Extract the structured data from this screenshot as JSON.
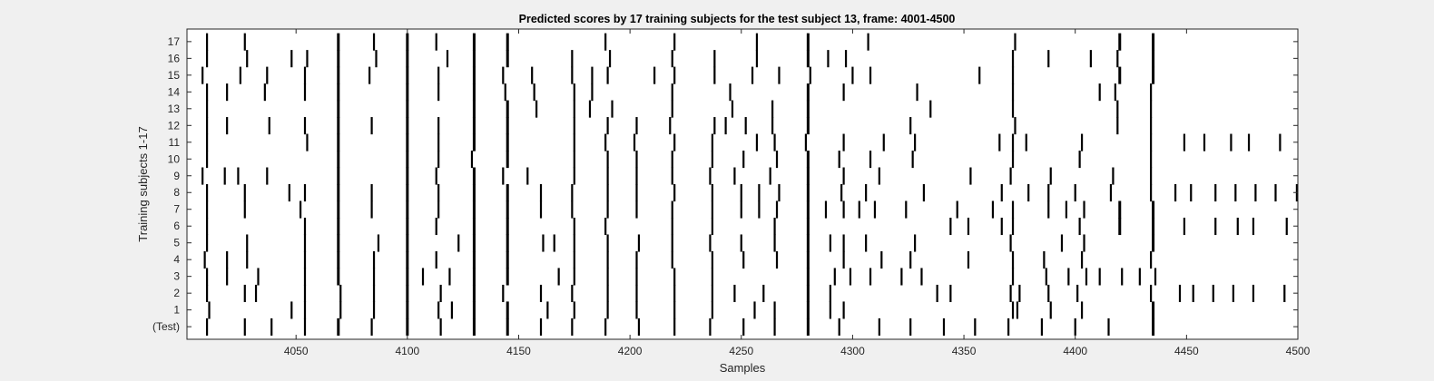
{
  "chart_data": {
    "type": "heatmap",
    "title": "Predicted scores by 17 training subjects for the test subject 13, frame: 4001-4500",
    "xlabel": "Samples",
    "ylabel": "Training subjects 1-17",
    "xlim": [
      4001,
      4500
    ],
    "xticks": [
      4050,
      4100,
      4150,
      4200,
      4250,
      4300,
      4350,
      4400,
      4450,
      4500
    ],
    "yticklabels": [
      "(Test)",
      "1",
      "2",
      "3",
      "4",
      "5",
      "6",
      "7",
      "8",
      "9",
      "10",
      "11",
      "12",
      "13",
      "14",
      "15",
      "16",
      "17"
    ],
    "grid": false,
    "colormap": {
      "background": "#ffffff",
      "event": "#000000"
    },
    "rows": [
      {
        "label": "(Test)",
        "events": [
          4010,
          4027,
          4039,
          4054,
          4069,
          4084,
          4100,
          4115,
          4130,
          4145,
          4160,
          4174,
          4189,
          4204,
          4220,
          4236,
          4251,
          4265,
          4280,
          4294,
          4312,
          4326,
          4341,
          4355,
          4370,
          4385,
          4400,
          4415,
          4435
        ]
      },
      {
        "label": "1",
        "events": [
          4011,
          4048,
          4054,
          4070,
          4085,
          4100,
          4114,
          4120,
          4130,
          4145,
          4163,
          4175,
          4190,
          4203,
          4220,
          4237,
          4256,
          4265,
          4280,
          4290,
          4296,
          4372,
          4374,
          4389,
          4403,
          4435
        ]
      },
      {
        "label": "2",
        "events": [
          4010,
          4027,
          4032,
          4054,
          4070,
          4085,
          4100,
          4115,
          4130,
          4143,
          4160,
          4174,
          4190,
          4203,
          4220,
          4237,
          4247,
          4260,
          4280,
          4290,
          4338,
          4344,
          4371,
          4375,
          4388,
          4401,
          4434,
          4447,
          4453,
          4462,
          4471,
          4480,
          4494
        ]
      },
      {
        "label": "3",
        "events": [
          4010,
          4019,
          4033,
          4054,
          4069,
          4085,
          4100,
          4107,
          4119,
          4130,
          4145,
          4168,
          4175,
          4190,
          4203,
          4220,
          4237,
          4280,
          4292,
          4299,
          4308,
          4322,
          4331,
          4372,
          4387,
          4397,
          4405,
          4411,
          4421,
          4429,
          4436
        ]
      },
      {
        "label": "4",
        "events": [
          4009,
          4019,
          4028,
          4054,
          4069,
          4085,
          4100,
          4113,
          4130,
          4145,
          4175,
          4190,
          4203,
          4219,
          4237,
          4251,
          4266,
          4280,
          4296,
          4313,
          4326,
          4352,
          4372,
          4386,
          4403,
          4434
        ]
      },
      {
        "label": "5",
        "events": [
          4010,
          4028,
          4054,
          4069,
          4087,
          4100,
          4123,
          4130,
          4145,
          4161,
          4166,
          4175,
          4190,
          4204,
          4219,
          4236,
          4250,
          4265,
          4280,
          4290,
          4296,
          4306,
          4328,
          4371,
          4394,
          4404,
          4435
        ]
      },
      {
        "label": "6",
        "events": [
          4010,
          4054,
          4069,
          4100,
          4113,
          4130,
          4145,
          4175,
          4189,
          4219,
          4237,
          4265,
          4280,
          4344,
          4352,
          4367,
          4372,
          4402,
          4420,
          4435,
          4449,
          4463,
          4473,
          4480,
          4495
        ]
      },
      {
        "label": "7",
        "events": [
          4010,
          4027,
          4052,
          4069,
          4084,
          4100,
          4114,
          4130,
          4145,
          4160,
          4174,
          4190,
          4203,
          4219,
          4237,
          4250,
          4258,
          4266,
          4280,
          4288,
          4296,
          4303,
          4310,
          4324,
          4347,
          4363,
          4372,
          4388,
          4396,
          4404,
          4420,
          4435
        ]
      },
      {
        "label": "8",
        "events": [
          4010,
          4027,
          4047,
          4054,
          4069,
          4084,
          4100,
          4114,
          4130,
          4145,
          4160,
          4174,
          4190,
          4203,
          4220,
          4237,
          4250,
          4258,
          4267,
          4280,
          4295,
          4306,
          4332,
          4367,
          4379,
          4388,
          4400,
          4416,
          4434,
          4445,
          4452,
          4463,
          4472,
          4481,
          4490,
          4500
        ]
      },
      {
        "label": "9",
        "events": [
          4008,
          4018,
          4024,
          4037,
          4069,
          4100,
          4113,
          4130,
          4143,
          4154,
          4175,
          4190,
          4203,
          4219,
          4236,
          4247,
          4263,
          4280,
          4296,
          4312,
          4353,
          4371,
          4389,
          4417,
          4434
        ]
      },
      {
        "label": "10",
        "events": [
          4010,
          4069,
          4100,
          4114,
          4129,
          4145,
          4175,
          4190,
          4203,
          4219,
          4237,
          4251,
          4266,
          4280,
          4294,
          4308,
          4327,
          4372,
          4402,
          4434
        ]
      },
      {
        "label": "11",
        "events": [
          4010,
          4055,
          4069,
          4100,
          4114,
          4130,
          4145,
          4175,
          4189,
          4202,
          4220,
          4237,
          4257,
          4265,
          4279,
          4296,
          4314,
          4328,
          4366,
          4372,
          4378,
          4403,
          4434,
          4449,
          4458,
          4470,
          4478,
          4492
        ]
      },
      {
        "label": "12",
        "events": [
          4010,
          4019,
          4038,
          4054,
          4069,
          4084,
          4100,
          4114,
          4130,
          4145,
          4175,
          4190,
          4203,
          4218,
          4238,
          4243,
          4252,
          4264,
          4280,
          4326,
          4373,
          4419,
          4434
        ]
      },
      {
        "label": "13",
        "events": [
          4010,
          4069,
          4100,
          4130,
          4145,
          4158,
          4175,
          4182,
          4192,
          4219,
          4246,
          4264,
          4280,
          4335,
          4372,
          4419,
          4434
        ]
      },
      {
        "label": "14",
        "events": [
          4010,
          4019,
          4036,
          4054,
          4069,
          4100,
          4114,
          4130,
          4144,
          4157,
          4175,
          4183,
          4219,
          4245,
          4280,
          4296,
          4329,
          4372,
          4411,
          4418,
          4434
        ]
      },
      {
        "label": "15",
        "events": [
          4008,
          4025,
          4037,
          4054,
          4069,
          4083,
          4100,
          4114,
          4130,
          4143,
          4156,
          4174,
          4183,
          4190,
          4211,
          4220,
          4238,
          4255,
          4267,
          4281,
          4300,
          4308,
          4357,
          4372,
          4420,
          4435
        ]
      },
      {
        "label": "16",
        "events": [
          4010,
          4028,
          4048,
          4055,
          4069,
          4086,
          4100,
          4118,
          4130,
          4145,
          4174,
          4191,
          4219,
          4238,
          4257,
          4280,
          4289,
          4297,
          4372,
          4388,
          4407,
          4419,
          4435
        ]
      },
      {
        "label": "17",
        "events": [
          4010,
          4027,
          4069,
          4085,
          4100,
          4113,
          4130,
          4145,
          4189,
          4220,
          4257,
          4280,
          4307,
          4373,
          4420,
          4435
        ]
      }
    ],
    "heavy_columns": [
      4069,
      4100,
      4130,
      4145,
      4280,
      4420,
      4435
    ]
  }
}
